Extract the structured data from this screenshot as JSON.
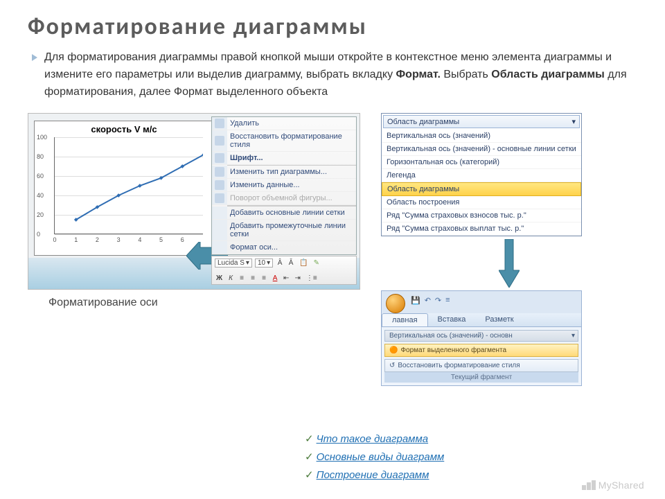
{
  "title": "Форматирование диаграммы",
  "body": {
    "pre1": "Для форматирования диаграммы правой кнопкой мыши откройте в контекстное меню элемента диаграммы и измените его параметры или выделив диаграмму, выбрать вкладку ",
    "b1": "Формат.",
    "mid": " Выбрать  ",
    "b2": "Область диаграммы",
    "post": " для форматирования, далее Формат выделенного объекта"
  },
  "chart": {
    "title": "скорость V м/с",
    "y_ticks": [
      0,
      20,
      40,
      60,
      80,
      100
    ],
    "x_ticks": [
      0,
      1,
      2,
      3,
      4,
      5,
      6
    ],
    "y_max": 100,
    "x_max": 7,
    "points": [
      [
        1,
        15
      ],
      [
        2,
        28
      ],
      [
        3,
        40
      ],
      [
        4,
        50
      ],
      [
        5,
        58
      ],
      [
        6,
        70
      ],
      [
        7,
        82
      ]
    ],
    "line_color": "#2f6db3",
    "marker_color": "#2f6db3",
    "grid_color": "#dddddd",
    "axis_color": "#666666"
  },
  "context_menu": {
    "items": [
      {
        "label": "Удалить",
        "icon": "delete-icon",
        "disabled": false
      },
      {
        "label": "Восстановить форматирование стиля",
        "icon": "reset-icon",
        "disabled": false
      },
      {
        "label": "Шрифт...",
        "icon": "font-icon",
        "disabled": false,
        "bold": true
      },
      {
        "label": "Изменить тип диаграммы...",
        "icon": "chart-type-icon",
        "disabled": false
      },
      {
        "label": "Изменить данные...",
        "icon": "data-icon",
        "disabled": false
      },
      {
        "label": "Поворот объемной фигуры...",
        "icon": "rotate-icon",
        "disabled": true
      },
      {
        "label": "Добавить основные линии сетки",
        "disabled": false
      },
      {
        "label": "Добавить промежуточные линии сетки",
        "disabled": false
      },
      {
        "label": "Формат оси...",
        "disabled": false
      }
    ]
  },
  "mini_toolbar": {
    "font_name": "Lucida S",
    "font_size": "10"
  },
  "caption_left": "Форматирование оси",
  "dropdown": {
    "header": "Область диаграммы",
    "items": [
      {
        "label": "Вертикальная ось (значений)"
      },
      {
        "label": "Вертикальная ось (значений) - основные линии сетки"
      },
      {
        "label": "Горизонтальная ось (категорий)"
      },
      {
        "label": "Легенда"
      },
      {
        "label": "Область диаграммы",
        "highlighted": true
      },
      {
        "label": "Область построения"
      },
      {
        "label": "Ряд \"Сумма страховых взносов тыс. р.\""
      },
      {
        "label": "Ряд \"Сумма страховых выплат тыс. р.\""
      }
    ]
  },
  "ribbon": {
    "tabs": [
      "лавная",
      "Вставка",
      "Разметк"
    ],
    "field": "Вертикальная ось (значений) - основн",
    "btn_format": "Формат выделенного фрагмента",
    "btn_reset": "Восстановить форматирование стиля",
    "group": "Текущий фрагмент"
  },
  "links": [
    "Что такое диаграмма",
    "Основные виды диаграмм",
    "Построение диаграмм"
  ],
  "watermark": "MyShared",
  "colors": {
    "title": "#5c5c5c",
    "link": "#1f6fb3",
    "accent_arrow": "#4a8ea8",
    "highlight_bg": "#ffd24a"
  }
}
